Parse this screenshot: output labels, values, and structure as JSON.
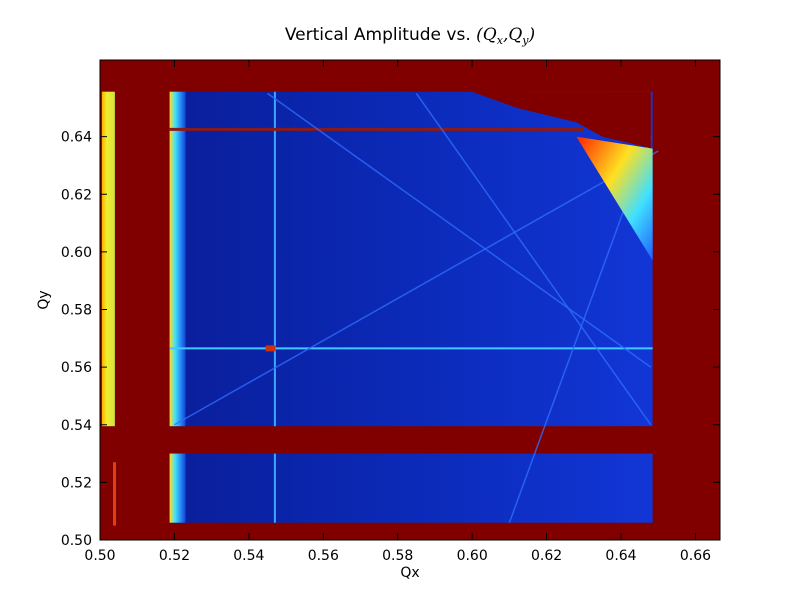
{
  "chart_data": {
    "type": "heatmap",
    "title_text": "Vertical Amplitude vs. ",
    "title_math": {
      "open": "(",
      "q1": "Q",
      "s1": "x",
      "sep": ",",
      "q2": "Q",
      "s2": "y",
      "close": ")"
    },
    "xlabel": "Qx",
    "ylabel": "Qy",
    "xlim": [
      0.5,
      0.6666
    ],
    "ylim": [
      0.5,
      0.6666
    ],
    "xticks": [
      "0.50",
      "0.52",
      "0.54",
      "0.56",
      "0.58",
      "0.60",
      "0.62",
      "0.64",
      "0.66"
    ],
    "yticks": [
      "0.50",
      "0.52",
      "0.54",
      "0.56",
      "0.58",
      "0.60",
      "0.62",
      "0.64"
    ],
    "colormap": "jet",
    "colors": {
      "background_saturated": "#800000",
      "bulk_low": "#0a2abf",
      "resonance_line": "#3aa0ff",
      "band_yellow": "#e8f020",
      "band_cyan": "#40d0ff",
      "hot_red": "#d01010"
    },
    "regions": [
      {
        "name": "upper-stable-region",
        "x": [
          0.5187,
          0.6485
        ],
        "y": [
          0.5395,
          0.6556
        ]
      },
      {
        "name": "lower-stable-region",
        "x": [
          0.5187,
          0.6485
        ],
        "y": [
          0.506,
          0.53
        ]
      },
      {
        "name": "left-strip",
        "x": [
          0.5005,
          0.504
        ],
        "y": [
          0.5395,
          0.6556
        ]
      }
    ],
    "resonance_lines": {
      "vertical_qx": [
        0.5187,
        0.547
      ],
      "horizontal_qy": [
        0.6425,
        0.5665
      ],
      "diagonals": [
        {
          "from": [
            0.52,
            0.54
          ],
          "to": [
            0.65,
            0.635
          ]
        },
        {
          "from": [
            0.585,
            0.655
          ],
          "to": [
            0.648,
            0.54
          ]
        },
        {
          "from": [
            0.545,
            0.655
          ],
          "to": [
            0.648,
            0.56
          ]
        },
        {
          "from": [
            0.61,
            0.506
          ],
          "to": [
            0.648,
            0.64
          ]
        }
      ]
    }
  }
}
